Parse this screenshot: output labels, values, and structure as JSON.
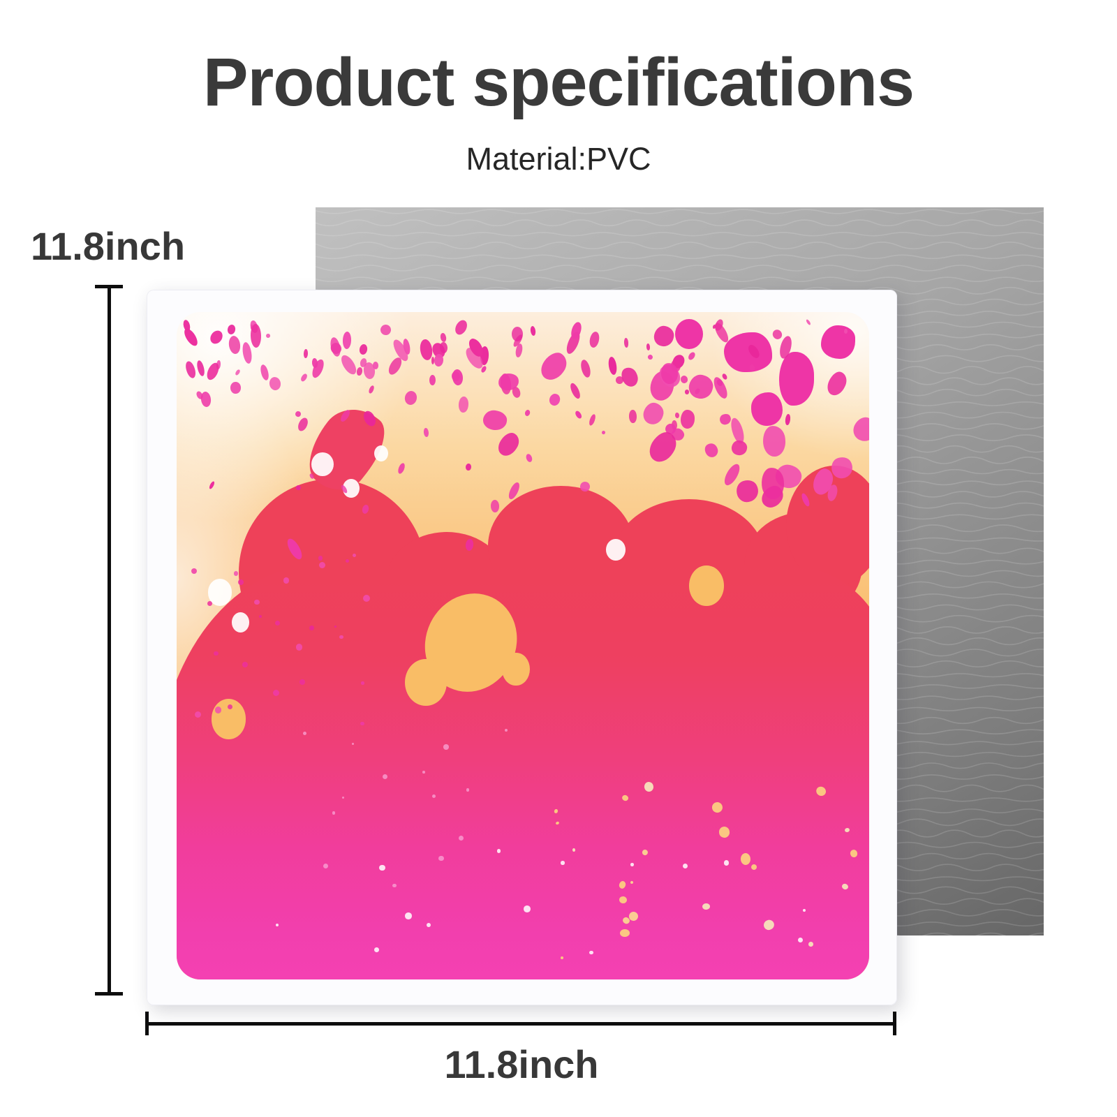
{
  "header": {
    "title": "Product specifications",
    "material": "Material:PVC"
  },
  "dimensions": {
    "height_label": "11.8inch",
    "width_label": "11.8inch"
  },
  "colors": {
    "title_text": "#3a3a3a",
    "subtitle_text": "#262626",
    "dimension_text": "#383838",
    "dimension_line": "#0d0d0d",
    "mat_gray_light": "#c0c0c0",
    "mat_gray_dark": "#666666",
    "tile_white": "#fcfcfe",
    "liquid_pale": "#fdeedd",
    "liquid_orange": "#f9b85f",
    "liquid_crimson": "#ee4159",
    "liquid_magenta": "#f23fae",
    "splatter_pink": "#ee35a6"
  }
}
